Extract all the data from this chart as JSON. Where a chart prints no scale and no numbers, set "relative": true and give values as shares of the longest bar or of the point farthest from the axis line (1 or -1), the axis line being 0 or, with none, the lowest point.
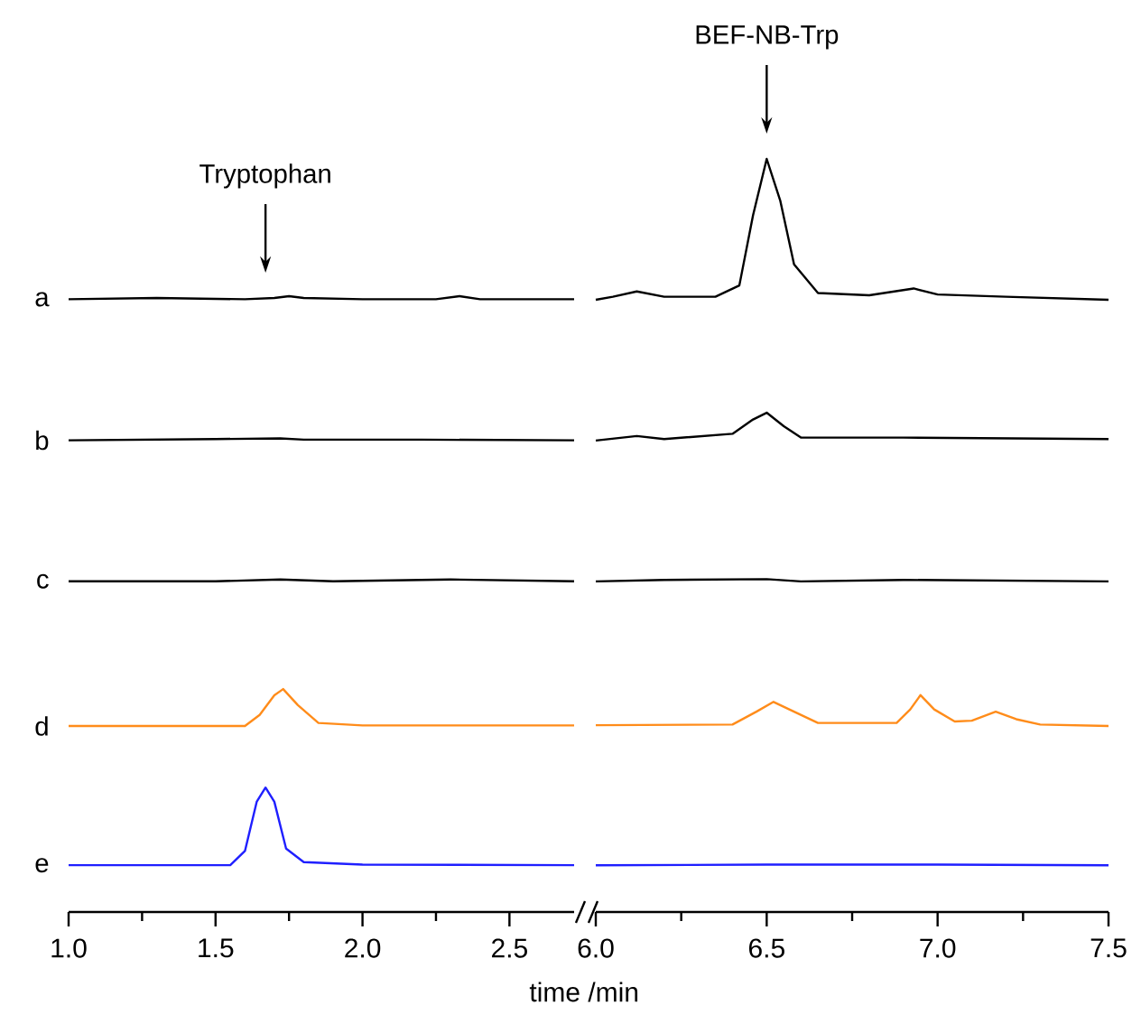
{
  "chart_data": [
    {
      "type": "line",
      "relative": true,
      "marker": "none",
      "xlabel": "time /min",
      "xlim": [
        1.0,
        2.72
      ],
      "xticks": [
        {
          "value": 1.0,
          "label": "1.0"
        },
        {
          "value": 1.5,
          "label": "1.5"
        },
        {
          "value": 2.0,
          "label": "2.0"
        },
        {
          "value": 2.5,
          "label": "2.5"
        }
      ],
      "annotations": [
        "Tryptophan"
      ],
      "series": [
        {
          "name": "a",
          "color": "#000000",
          "x": [
            1.0,
            1.3,
            1.6,
            1.7,
            1.75,
            1.8,
            2.0,
            2.25,
            2.33,
            2.4,
            2.72
          ],
          "values": [
            0.995,
            0.997,
            0.995,
            0.997,
            1,
            0.997,
            0.995,
            0.995,
            1,
            0.995,
            0.995
          ]
        },
        {
          "name": "b",
          "color": "#000000",
          "x": [
            1.0,
            1.5,
            1.72,
            1.8,
            2.2,
            2.72
          ],
          "values": [
            0.766,
            0.768,
            0.769,
            0.767,
            0.767,
            0.766
          ]
        },
        {
          "name": "c",
          "color": "#000000",
          "x": [
            1.0,
            1.5,
            1.72,
            1.9,
            2.3,
            2.72
          ],
          "values": [
            0.537,
            0.537,
            0.54,
            0.537,
            0.54,
            0.537
          ]
        },
        {
          "name": "d",
          "color": "#ff8c1a",
          "x": [
            1.0,
            1.6,
            1.65,
            1.7,
            1.73,
            1.78,
            1.85,
            2.0,
            2.72
          ],
          "values": [
            0.302,
            0.302,
            0.32,
            0.352,
            0.362,
            0.336,
            0.307,
            0.303,
            0.303
          ]
        },
        {
          "name": "e",
          "color": "#1f1fff",
          "x": [
            1.0,
            1.55,
            1.6,
            1.64,
            1.67,
            1.7,
            1.74,
            1.8,
            2.0,
            2.72
          ],
          "values": [
            0.076,
            0.076,
            0.099,
            0.179,
            0.202,
            0.179,
            0.103,
            0.081,
            0.077,
            0.076
          ]
        }
      ]
    },
    {
      "type": "line",
      "relative": true,
      "marker": "none",
      "xlim": [
        6.0,
        7.5
      ],
      "xticks": [
        {
          "value": 6.0,
          "label": "6.0"
        },
        {
          "value": 6.5,
          "label": "6.5"
        },
        {
          "value": 7.0,
          "label": "7.0"
        },
        {
          "value": 7.5,
          "label": "7.5"
        }
      ],
      "annotations": [
        "BEF-NB-Trp"
      ],
      "series": [
        {
          "color": "#000000",
          "x": [
            6.0,
            6.05,
            6.12,
            6.2,
            6.35,
            6.42,
            6.46,
            6.5,
            6.54,
            6.58,
            6.65,
            6.8,
            6.93,
            7.0,
            7.2,
            7.5
          ],
          "values": [
            0.813,
            0.817,
            0.824,
            0.817,
            0.817,
            0.832,
            0.925,
            1,
            0.944,
            0.86,
            0.822,
            0.819,
            0.828,
            0.82,
            0.817,
            0.813
          ]
        },
        {
          "color": "#000000",
          "x": [
            6.0,
            6.12,
            6.2,
            6.4,
            6.46,
            6.5,
            6.55,
            6.6,
            6.9,
            7.5
          ],
          "values": [
            0.626,
            0.632,
            0.628,
            0.635,
            0.654,
            0.663,
            0.645,
            0.63,
            0.63,
            0.628
          ]
        },
        {
          "color": "#000000",
          "x": [
            6.0,
            6.2,
            6.5,
            6.6,
            6.9,
            7.5
          ],
          "values": [
            0.439,
            0.441,
            0.442,
            0.439,
            0.441,
            0.439
          ]
        },
        {
          "color": "#ff8c1a",
          "x": [
            6.0,
            6.4,
            6.47,
            6.52,
            6.58,
            6.65,
            6.88,
            6.92,
            6.95,
            6.99,
            7.05,
            7.1,
            7.17,
            7.23,
            7.3,
            7.5
          ],
          "values": [
            0.248,
            0.249,
            0.266,
            0.279,
            0.266,
            0.251,
            0.251,
            0.269,
            0.288,
            0.269,
            0.253,
            0.254,
            0.266,
            0.256,
            0.249,
            0.247
          ]
        },
        {
          "color": "#1f1fff",
          "x": [
            6.0,
            6.5,
            7.0,
            7.5
          ],
          "values": [
            0.062,
            0.063,
            0.063,
            0.062
          ]
        }
      ]
    }
  ]
}
